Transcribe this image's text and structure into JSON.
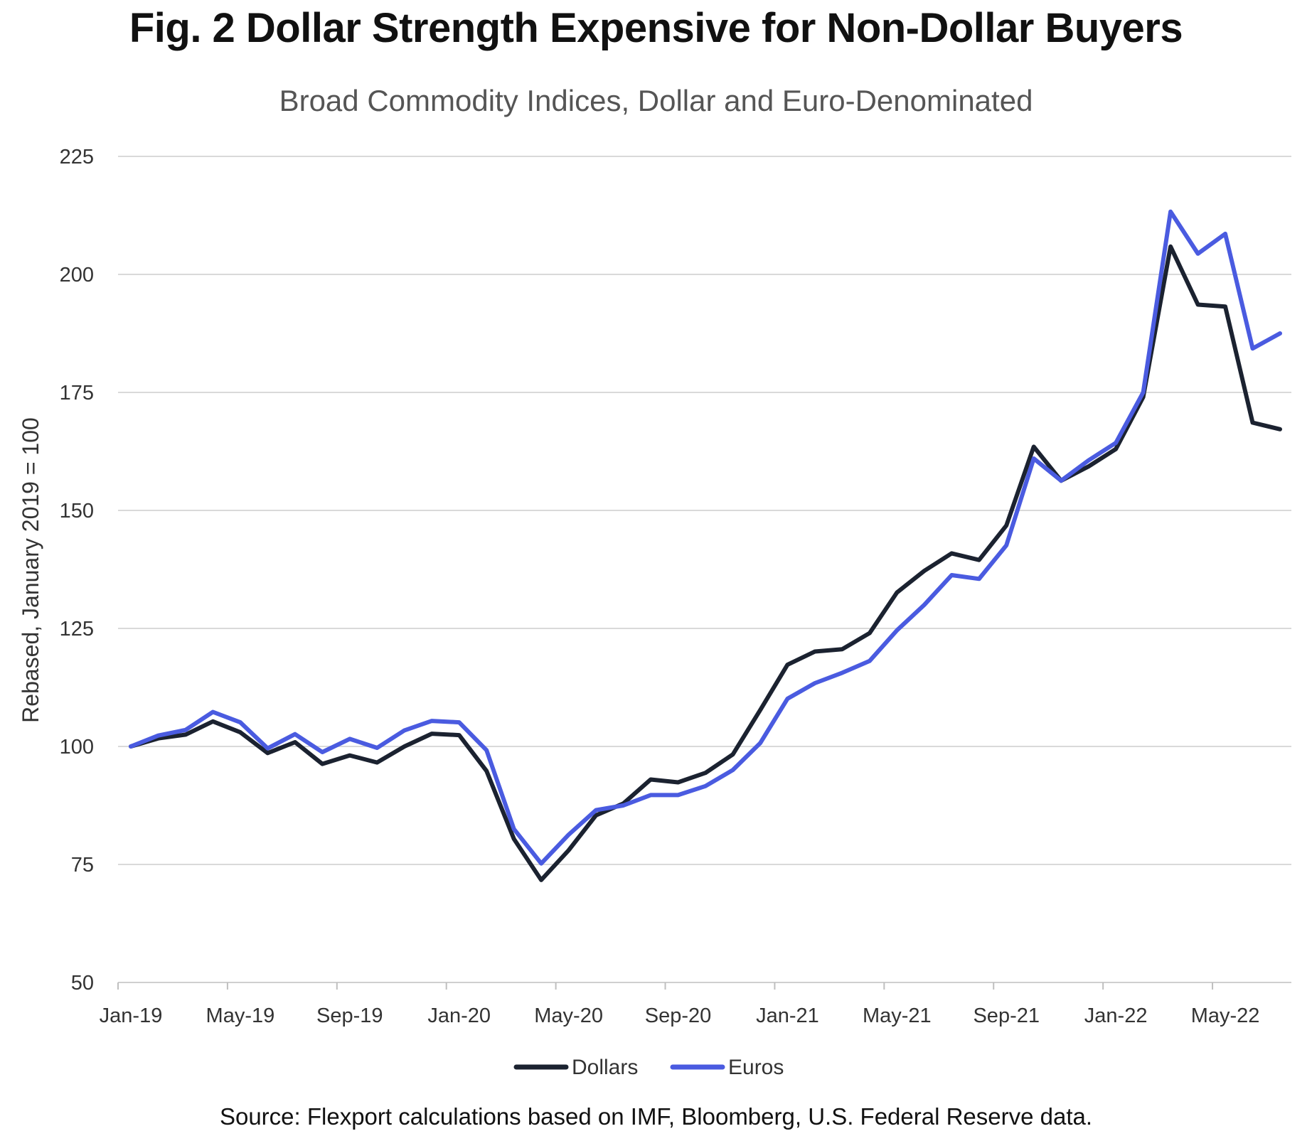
{
  "chart_data": {
    "type": "line",
    "title": "Fig. 2 Dollar Strength Expensive for Non-Dollar Buyers",
    "subtitle": "Broad Commodity Indices, Dollar and Euro-Denominated",
    "ylabel": "Rebased, January 2019 = 100",
    "xlabel": "",
    "ylim": [
      50,
      225
    ],
    "yticks": [
      50,
      75,
      100,
      125,
      150,
      175,
      200,
      225
    ],
    "grid": true,
    "legend_position": "bottom-center",
    "x_tick_labels": [
      "Jan-19",
      "May-19",
      "Sep-19",
      "Jan-20",
      "May-20",
      "Sep-20",
      "Jan-21",
      "May-21",
      "Sep-21",
      "Jan-22",
      "May-22"
    ],
    "x": [
      "Jan-19",
      "Feb-19",
      "Mar-19",
      "Apr-19",
      "May-19",
      "Jun-19",
      "Jul-19",
      "Aug-19",
      "Sep-19",
      "Oct-19",
      "Nov-19",
      "Dec-19",
      "Jan-20",
      "Feb-20",
      "Mar-20",
      "Apr-20",
      "May-20",
      "Jun-20",
      "Jul-20",
      "Aug-20",
      "Sep-20",
      "Oct-20",
      "Nov-20",
      "Dec-20",
      "Jan-21",
      "Feb-21",
      "Mar-21",
      "Apr-21",
      "May-21",
      "Jun-21",
      "Jul-21",
      "Aug-21",
      "Sep-21",
      "Oct-21",
      "Nov-21",
      "Dec-21",
      "Jan-22",
      "Feb-22",
      "Mar-22",
      "Apr-22",
      "May-22",
      "Jun-22",
      "Jul-22"
    ],
    "series": [
      {
        "name": "Dollars",
        "color": "#1b2230",
        "values": [
          100,
          101.7,
          102.5,
          105.3,
          103,
          98.6,
          100.9,
          96.3,
          98.1,
          96.6,
          100,
          102.7,
          102.4,
          94.8,
          80.4,
          71.7,
          78,
          85.4,
          87.9,
          93,
          92.4,
          94.4,
          98.3,
          107.7,
          117.3,
          120.1,
          120.6,
          124,
          132.6,
          137.2,
          140.9,
          139.5,
          146.8,
          163.5,
          156.3,
          159.3,
          163,
          174,
          205.9,
          193.6,
          193.2,
          168.6,
          167.2
        ]
      },
      {
        "name": "Euros",
        "color": "#4a5be0",
        "values": [
          100,
          102.3,
          103.5,
          107.3,
          105.1,
          99.6,
          102.6,
          98.8,
          101.6,
          99.7,
          103.4,
          105.4,
          105.1,
          99.2,
          82.5,
          75.2,
          81.3,
          86.5,
          87.5,
          89.7,
          89.7,
          91.6,
          95,
          100.7,
          110.1,
          113.4,
          115.6,
          118.1,
          124.6,
          130,
          136.3,
          135.5,
          142.6,
          161,
          156.3,
          160.6,
          164.3,
          175,
          213.3,
          204.4,
          208.6,
          184.3,
          187.5
        ]
      }
    ]
  },
  "footer": {
    "source": "Source: Flexport calculations based on IMF, Bloomberg, U.S. Federal Reserve data."
  }
}
